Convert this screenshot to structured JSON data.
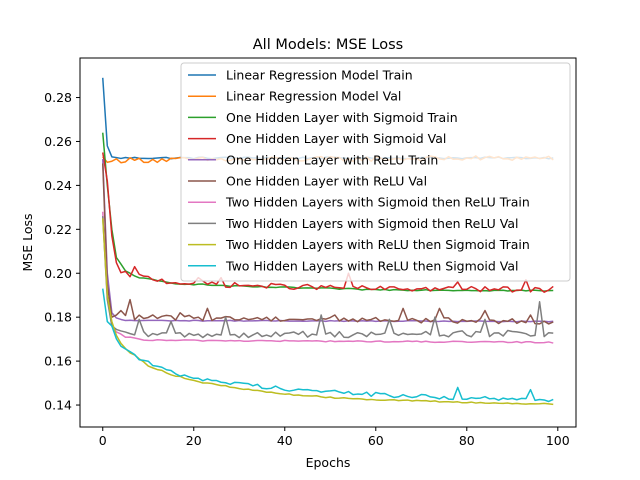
{
  "chart_data": {
    "type": "line",
    "title": "All Models: MSE Loss",
    "xlabel": "Epochs",
    "ylabel": "MSE Loss",
    "xlim": [
      -5,
      104
    ],
    "ylim": [
      0.13,
      0.298
    ],
    "xticks": [
      0,
      20,
      40,
      60,
      80,
      100
    ],
    "xtick_labels": [
      "0",
      "20",
      "40",
      "60",
      "80",
      "100"
    ],
    "yticks": [
      0.14,
      0.16,
      0.18,
      0.2,
      0.22,
      0.24,
      0.26,
      0.28
    ],
    "ytick_labels": [
      "0.14",
      "0.16",
      "0.18",
      "0.20",
      "0.22",
      "0.24",
      "0.26",
      "0.28"
    ],
    "grid": false,
    "legend_position": "upper-right",
    "series": [
      {
        "name": "Linear Regression Model Train",
        "color": "#1f77b4",
        "keypoints": [
          [
            0,
            0.289
          ],
          [
            1,
            0.258
          ],
          [
            2,
            0.253
          ],
          [
            3,
            0.2525
          ],
          [
            5,
            0.2525
          ],
          [
            100,
            0.2525
          ]
        ],
        "noise": 0.0004
      },
      {
        "name": "Linear Regression Model Val",
        "color": "#ff7f0e",
        "keypoints": [
          [
            0,
            0.253
          ],
          [
            1,
            0.2505
          ],
          [
            3,
            0.2515
          ],
          [
            100,
            0.2525
          ]
        ],
        "noise": 0.0012
      },
      {
        "name": "One Hidden Layer with Sigmoid Train",
        "color": "#2ca02c",
        "keypoints": [
          [
            0,
            0.264
          ],
          [
            1,
            0.24
          ],
          [
            2,
            0.22
          ],
          [
            3,
            0.207
          ],
          [
            5,
            0.201
          ],
          [
            8,
            0.198
          ],
          [
            15,
            0.1955
          ],
          [
            30,
            0.194
          ],
          [
            60,
            0.1925
          ],
          [
            100,
            0.192
          ]
        ],
        "noise": 0.0003
      },
      {
        "name": "One Hidden Layer with Sigmoid Val",
        "color": "#d62728",
        "keypoints": [
          [
            0,
            0.255
          ],
          [
            1,
            0.242
          ],
          [
            2,
            0.217
          ],
          [
            3,
            0.204
          ],
          [
            4,
            0.2
          ],
          [
            7,
            0.199
          ],
          [
            15,
            0.196
          ],
          [
            30,
            0.1945
          ],
          [
            60,
            0.193
          ],
          [
            100,
            0.1925
          ]
        ],
        "noise": 0.0012,
        "spikes": [
          [
            7,
            0.203
          ],
          [
            21,
            0.198
          ],
          [
            26,
            0.198
          ],
          [
            54,
            0.2
          ],
          [
            78,
            0.196
          ],
          [
            93,
            0.197
          ],
          [
            99,
            0.194
          ]
        ]
      },
      {
        "name": "One Hidden Layer with ReLU Train",
        "color": "#9467bd",
        "keypoints": [
          [
            0,
            0.252
          ],
          [
            1,
            0.2
          ],
          [
            2,
            0.182
          ],
          [
            3,
            0.1795
          ],
          [
            5,
            0.1785
          ],
          [
            100,
            0.178
          ]
        ],
        "noise": 0.0002
      },
      {
        "name": "One Hidden Layer with ReLU Val",
        "color": "#8c564b",
        "keypoints": [
          [
            0,
            0.25
          ],
          [
            1,
            0.195
          ],
          [
            2,
            0.18
          ],
          [
            3,
            0.18
          ],
          [
            100,
            0.178
          ]
        ],
        "noise": 0.0012,
        "spikes": [
          [
            4,
            0.183
          ],
          [
            6,
            0.188
          ],
          [
            17,
            0.182
          ],
          [
            23,
            0.184
          ],
          [
            51,
            0.181
          ],
          [
            66,
            0.184
          ],
          [
            74,
            0.184
          ],
          [
            84,
            0.183
          ],
          [
            94,
            0.181
          ]
        ]
      },
      {
        "name": "Two Hidden Layers with Sigmoid then ReLU Train",
        "color": "#e377c2",
        "keypoints": [
          [
            0,
            0.228
          ],
          [
            1,
            0.19
          ],
          [
            2,
            0.176
          ],
          [
            3,
            0.173
          ],
          [
            5,
            0.171
          ],
          [
            10,
            0.1695
          ],
          [
            100,
            0.1685
          ]
        ],
        "noise": 0.0003
      },
      {
        "name": "Two Hidden Layers with Sigmoid then ReLU Val",
        "color": "#7f7f7f",
        "keypoints": [
          [
            0,
            0.226
          ],
          [
            1,
            0.188
          ],
          [
            2,
            0.176
          ],
          [
            3,
            0.173
          ],
          [
            10,
            0.172
          ],
          [
            100,
            0.1725
          ]
        ],
        "noise": 0.0015,
        "spikes": [
          [
            8,
            0.179
          ],
          [
            15,
            0.178
          ],
          [
            27,
            0.18
          ],
          [
            48,
            0.181
          ],
          [
            63,
            0.179
          ],
          [
            73,
            0.18
          ],
          [
            84,
            0.179
          ],
          [
            96,
            0.187
          ]
        ]
      },
      {
        "name": "Two Hidden Layers with ReLU then Sigmoid Train",
        "color": "#bcbd22",
        "keypoints": [
          [
            0,
            0.225
          ],
          [
            1,
            0.19
          ],
          [
            2,
            0.178
          ],
          [
            3,
            0.172
          ],
          [
            4,
            0.168
          ],
          [
            6,
            0.164
          ],
          [
            10,
            0.158
          ],
          [
            15,
            0.154
          ],
          [
            20,
            0.151
          ],
          [
            30,
            0.1475
          ],
          [
            40,
            0.145
          ],
          [
            50,
            0.1435
          ],
          [
            60,
            0.1425
          ],
          [
            70,
            0.1418
          ],
          [
            80,
            0.1412
          ],
          [
            90,
            0.1407
          ],
          [
            100,
            0.1405
          ]
        ],
        "noise": 0.0003
      },
      {
        "name": "Two Hidden Layers with ReLU then Sigmoid Val",
        "color": "#17becf",
        "keypoints": [
          [
            0,
            0.193
          ],
          [
            1,
            0.178
          ],
          [
            2,
            0.176
          ],
          [
            3,
            0.171
          ],
          [
            4,
            0.167
          ],
          [
            6,
            0.164
          ],
          [
            10,
            0.159
          ],
          [
            15,
            0.155
          ],
          [
            20,
            0.1525
          ],
          [
            30,
            0.1495
          ],
          [
            40,
            0.1475
          ],
          [
            50,
            0.146
          ],
          [
            60,
            0.1448
          ],
          [
            70,
            0.1438
          ],
          [
            80,
            0.1432
          ],
          [
            90,
            0.1425
          ],
          [
            100,
            0.142
          ]
        ],
        "noise": 0.001,
        "spikes": [
          [
            78,
            0.148
          ],
          [
            94,
            0.147
          ]
        ]
      }
    ]
  }
}
